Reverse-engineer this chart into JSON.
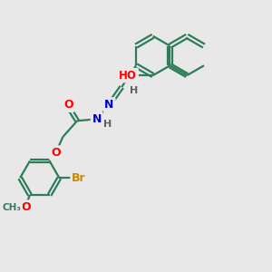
{
  "bg_color": "#e8e8e8",
  "bond_color": "#2d7d5a",
  "bond_width": 1.6,
  "atom_colors": {
    "O": "#ff0000",
    "N": "#0000cd",
    "Br": "#cc8800",
    "C": "#2d7d5a",
    "H": "#606060"
  },
  "font_size": 8.5,
  "fig_size": [
    3.0,
    3.0
  ],
  "dpi": 100
}
